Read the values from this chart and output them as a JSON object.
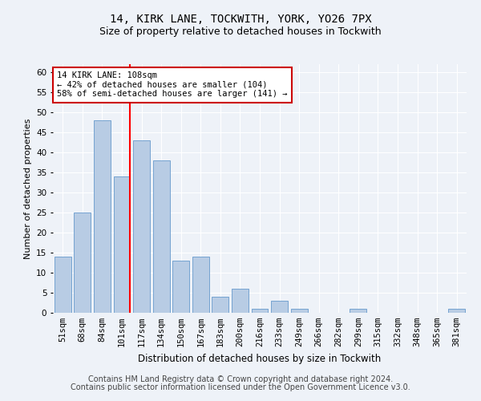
{
  "title1": "14, KIRK LANE, TOCKWITH, YORK, YO26 7PX",
  "title2": "Size of property relative to detached houses in Tockwith",
  "xlabel": "Distribution of detached houses by size in Tockwith",
  "ylabel": "Number of detached properties",
  "categories": [
    "51sqm",
    "68sqm",
    "84sqm",
    "101sqm",
    "117sqm",
    "134sqm",
    "150sqm",
    "167sqm",
    "183sqm",
    "200sqm",
    "216sqm",
    "233sqm",
    "249sqm",
    "266sqm",
    "282sqm",
    "299sqm",
    "315sqm",
    "332sqm",
    "348sqm",
    "365sqm",
    "381sqm"
  ],
  "values": [
    14,
    25,
    48,
    34,
    43,
    38,
    13,
    14,
    4,
    6,
    1,
    3,
    1,
    0,
    0,
    1,
    0,
    0,
    0,
    0,
    1
  ],
  "bar_color": "#b8cce4",
  "bar_edgecolor": "#6699cc",
  "redline_index": 3,
  "ylim": [
    0,
    62
  ],
  "yticks": [
    0,
    5,
    10,
    15,
    20,
    25,
    30,
    35,
    40,
    45,
    50,
    55,
    60
  ],
  "annotation_text": "14 KIRK LANE: 108sqm\n← 42% of detached houses are smaller (104)\n58% of semi-detached houses are larger (141) →",
  "annotation_box_color": "#ffffff",
  "annotation_box_edgecolor": "#cc0000",
  "footer1": "Contains HM Land Registry data © Crown copyright and database right 2024.",
  "footer2": "Contains public sector information licensed under the Open Government Licence v3.0.",
  "background_color": "#eef2f8",
  "fig_background_color": "#eef2f8",
  "grid_color": "#ffffff",
  "title1_fontsize": 10,
  "title2_fontsize": 9,
  "xlabel_fontsize": 8.5,
  "ylabel_fontsize": 8,
  "tick_fontsize": 7.5,
  "footer_fontsize": 7
}
